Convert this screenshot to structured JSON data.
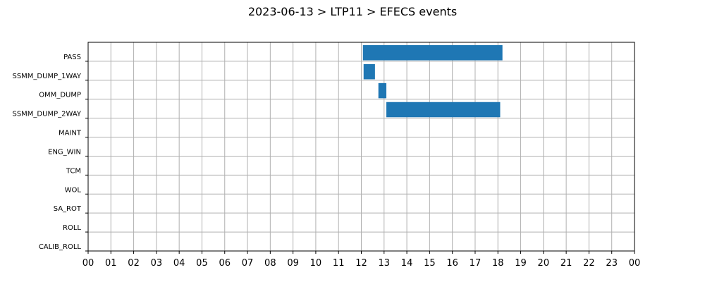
{
  "chart_data": {
    "type": "bar",
    "orientation": "horizontal",
    "title": "2023-06-13 > LTP11 > EFECS events",
    "xlabel": "",
    "ylabel": "",
    "x_tick_labels": [
      "00",
      "01",
      "02",
      "03",
      "04",
      "05",
      "06",
      "07",
      "08",
      "09",
      "10",
      "11",
      "12",
      "13",
      "14",
      "15",
      "16",
      "17",
      "18",
      "19",
      "20",
      "21",
      "22",
      "23",
      "00"
    ],
    "xlim": [
      0,
      24
    ],
    "categories": [
      "PASS",
      "SSMM_DUMP_1WAY",
      "OMM_DUMP",
      "SSMM_DUMP_2WAY",
      "MAINT",
      "ENG_WIN",
      "TCM",
      "WOL",
      "SA_ROT",
      "ROLL",
      "CALIB_ROLL"
    ],
    "events": [
      {
        "category": "PASS",
        "start": 12.07,
        "end": 18.2
      },
      {
        "category": "SSMM_DUMP_1WAY",
        "start": 12.1,
        "end": 12.6
      },
      {
        "category": "OMM_DUMP",
        "start": 12.75,
        "end": 13.1
      },
      {
        "category": "SSMM_DUMP_2WAY",
        "start": 13.1,
        "end": 18.1
      }
    ],
    "bar_color": "#1f77b4",
    "grid": true,
    "legend": "none"
  }
}
